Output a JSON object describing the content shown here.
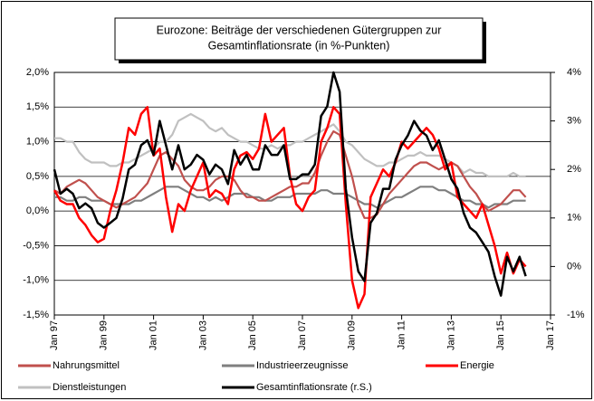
{
  "chart_data": {
    "type": "line",
    "title": "Eurozone: Beiträge der verschiedenen Gütergruppen zur Gesamtinflationsrate (in %-Punkten)",
    "title_lines": [
      "Eurozone: Beiträge der verschiedenen Gütergruppen zur",
      "Gesamtinflationsrate (in %-Punkten)"
    ],
    "x": [
      1997,
      1997.25,
      1997.5,
      1997.75,
      1998,
      1998.25,
      1998.5,
      1998.75,
      1999,
      1999.25,
      1999.5,
      1999.75,
      2000,
      2000.25,
      2000.5,
      2000.75,
      2001,
      2001.25,
      2001.5,
      2001.75,
      2002,
      2002.25,
      2002.5,
      2002.75,
      2003,
      2003.25,
      2003.5,
      2003.75,
      2004,
      2004.25,
      2004.5,
      2004.75,
      2005,
      2005.25,
      2005.5,
      2005.75,
      2006,
      2006.25,
      2006.5,
      2006.75,
      2007,
      2007.25,
      2007.5,
      2007.75,
      2008,
      2008.25,
      2008.5,
      2008.75,
      2009,
      2009.25,
      2009.5,
      2009.75,
      2010,
      2010.25,
      2010.5,
      2010.75,
      2011,
      2011.25,
      2011.5,
      2011.75,
      2012,
      2012.25,
      2012.5,
      2012.75,
      2013,
      2013.25,
      2013.5,
      2013.75,
      2014,
      2014.25,
      2014.5,
      2014.75,
      2015,
      2015.25,
      2015.5,
      2015.75,
      2016
    ],
    "xlim": [
      1997,
      2017
    ],
    "xticks": [
      {
        "value": 1997,
        "label": "Jan 97"
      },
      {
        "value": 1999,
        "label": "Jan 99"
      },
      {
        "value": 2001,
        "label": "Jan 01"
      },
      {
        "value": 2003,
        "label": "Jan 03"
      },
      {
        "value": 2005,
        "label": "Jan 05"
      },
      {
        "value": 2007,
        "label": "Jan 07"
      },
      {
        "value": 2009,
        "label": "Jan 09"
      },
      {
        "value": 2011,
        "label": "Jan 11"
      },
      {
        "value": 2013,
        "label": "Jan 13"
      },
      {
        "value": 2015,
        "label": "Jan 15"
      },
      {
        "value": 2017,
        "label": "Jan 17"
      }
    ],
    "ylim": [
      -1.5,
      2.0
    ],
    "yticks": [
      {
        "value": -1.5,
        "label": "-1,5%"
      },
      {
        "value": -1.0,
        "label": "-1,0%"
      },
      {
        "value": -0.5,
        "label": "-0,5%"
      },
      {
        "value": 0,
        "label": "0,0%"
      },
      {
        "value": 0.5,
        "label": "0,5%"
      },
      {
        "value": 1.0,
        "label": "1,0%"
      },
      {
        "value": 1.5,
        "label": "1,5%"
      },
      {
        "value": 2.0,
        "label": "2,0%"
      }
    ],
    "y2lim": [
      -1,
      4
    ],
    "y2ticks": [
      {
        "value": -1,
        "label": "-1%"
      },
      {
        "value": 0,
        "label": "0%"
      },
      {
        "value": 1,
        "label": "1%"
      },
      {
        "value": 2,
        "label": "2%"
      },
      {
        "value": 3,
        "label": "3%"
      },
      {
        "value": 4,
        "label": "4%"
      }
    ],
    "grid": true,
    "series": [
      {
        "name": "Nahrungsmittel",
        "color": "#c0504d",
        "values": [
          0.3,
          0.25,
          0.35,
          0.4,
          0.45,
          0.4,
          0.3,
          0.2,
          0.15,
          0.1,
          0.05,
          0.1,
          0.15,
          0.2,
          0.3,
          0.4,
          0.6,
          0.8,
          0.85,
          0.75,
          0.65,
          0.45,
          0.35,
          0.3,
          0.3,
          0.35,
          0.45,
          0.5,
          0.5,
          0.45,
          0.3,
          0.2,
          0.2,
          0.15,
          0.15,
          0.2,
          0.25,
          0.3,
          0.35,
          0.35,
          0.4,
          0.4,
          0.55,
          0.8,
          1.0,
          1.15,
          1.1,
          0.8,
          0.5,
          0.1,
          -0.1,
          -0.1,
          -0.05,
          0.1,
          0.25,
          0.35,
          0.45,
          0.55,
          0.65,
          0.7,
          0.7,
          0.65,
          0.6,
          0.65,
          0.7,
          0.65,
          0.5,
          0.35,
          0.25,
          0.1,
          0.0,
          0.05,
          0.1,
          0.2,
          0.3,
          0.3,
          0.2
        ]
      },
      {
        "name": "Industrieerzeugnisse",
        "color": "#7f7f7f",
        "values": [
          0.2,
          0.2,
          0.15,
          0.15,
          0.2,
          0.2,
          0.15,
          0.15,
          0.15,
          0.1,
          0.1,
          0.1,
          0.1,
          0.15,
          0.15,
          0.2,
          0.25,
          0.3,
          0.35,
          0.35,
          0.35,
          0.3,
          0.25,
          0.2,
          0.2,
          0.15,
          0.2,
          0.15,
          0.2,
          0.25,
          0.25,
          0.25,
          0.2,
          0.2,
          0.15,
          0.15,
          0.2,
          0.2,
          0.2,
          0.25,
          0.25,
          0.25,
          0.25,
          0.3,
          0.3,
          0.25,
          0.25,
          0.25,
          0.2,
          0.15,
          0.1,
          0.1,
          0.05,
          0.1,
          0.15,
          0.2,
          0.2,
          0.25,
          0.3,
          0.35,
          0.35,
          0.35,
          0.3,
          0.3,
          0.25,
          0.2,
          0.15,
          0.15,
          0.1,
          0.1,
          0.05,
          0.1,
          0.1,
          0.1,
          0.15,
          0.15,
          0.15
        ]
      },
      {
        "name": "Energie",
        "color": "#ff0000",
        "values": [
          0.3,
          0.15,
          0.1,
          0.1,
          -0.1,
          -0.2,
          -0.35,
          -0.45,
          -0.4,
          0.0,
          0.3,
          0.7,
          1.2,
          1.1,
          1.4,
          1.5,
          0.8,
          0.9,
          0.2,
          -0.3,
          0.1,
          0.0,
          0.3,
          0.5,
          0.7,
          0.2,
          0.3,
          0.25,
          0.1,
          0.6,
          0.8,
          0.85,
          0.75,
          0.9,
          1.4,
          1.0,
          1.1,
          1.2,
          0.5,
          0.1,
          0.0,
          0.2,
          0.3,
          1.0,
          1.2,
          1.5,
          1.4,
          0.1,
          -1.0,
          -1.4,
          -1.2,
          0.2,
          0.4,
          0.6,
          0.5,
          0.7,
          1.0,
          0.9,
          1.0,
          1.1,
          1.2,
          1.1,
          0.9,
          0.6,
          0.7,
          0.2,
          0.1,
          0.0,
          -0.1,
          0.1,
          -0.2,
          -0.5,
          -0.9,
          -0.6,
          -0.9,
          -0.7,
          -0.8
        ]
      },
      {
        "name": "Dienstleistungen",
        "color": "#c0c0c0",
        "values": [
          1.05,
          1.05,
          1.0,
          1.0,
          0.85,
          0.75,
          0.7,
          0.7,
          0.7,
          0.65,
          0.65,
          0.7,
          0.7,
          0.75,
          0.8,
          0.85,
          0.9,
          1.0,
          1.0,
          1.1,
          1.3,
          1.35,
          1.4,
          1.35,
          1.3,
          1.2,
          1.15,
          1.2,
          1.1,
          1.05,
          1.0,
          1.0,
          0.95,
          0.9,
          0.9,
          0.95,
          0.9,
          0.95,
          0.95,
          1.0,
          1.0,
          1.05,
          1.1,
          1.15,
          1.2,
          1.25,
          1.15,
          1.0,
          0.95,
          0.85,
          0.75,
          0.7,
          0.65,
          0.65,
          0.7,
          0.7,
          0.75,
          0.8,
          0.8,
          0.85,
          0.8,
          0.8,
          0.8,
          0.75,
          0.7,
          0.65,
          0.55,
          0.6,
          0.55,
          0.55,
          0.5,
          0.5,
          0.5,
          0.5,
          0.55,
          0.5,
          0.5
        ]
      },
      {
        "name": "Gesamtinflationsrate (r.S.)",
        "color": "#000000",
        "axis": "y2",
        "values": [
          2.0,
          1.5,
          1.6,
          1.5,
          1.2,
          1.3,
          1.2,
          0.9,
          0.8,
          0.9,
          1.0,
          1.4,
          2.0,
          2.1,
          2.5,
          2.6,
          2.3,
          3.0,
          2.5,
          2.0,
          2.5,
          2.0,
          2.1,
          2.3,
          2.2,
          1.9,
          2.1,
          2.0,
          1.7,
          2.4,
          2.1,
          2.3,
          2.0,
          2.0,
          2.5,
          2.3,
          2.3,
          2.5,
          1.8,
          1.8,
          1.9,
          1.9,
          2.1,
          3.1,
          3.3,
          4.0,
          3.6,
          1.6,
          0.6,
          -0.1,
          -0.3,
          0.9,
          1.1,
          1.6,
          1.6,
          2.2,
          2.5,
          2.7,
          3.0,
          2.8,
          2.7,
          2.4,
          2.6,
          2.2,
          1.8,
          1.6,
          1.1,
          0.8,
          0.7,
          0.5,
          0.3,
          -0.2,
          -0.6,
          0.2,
          -0.1,
          0.2,
          -0.2
        ]
      }
    ]
  }
}
